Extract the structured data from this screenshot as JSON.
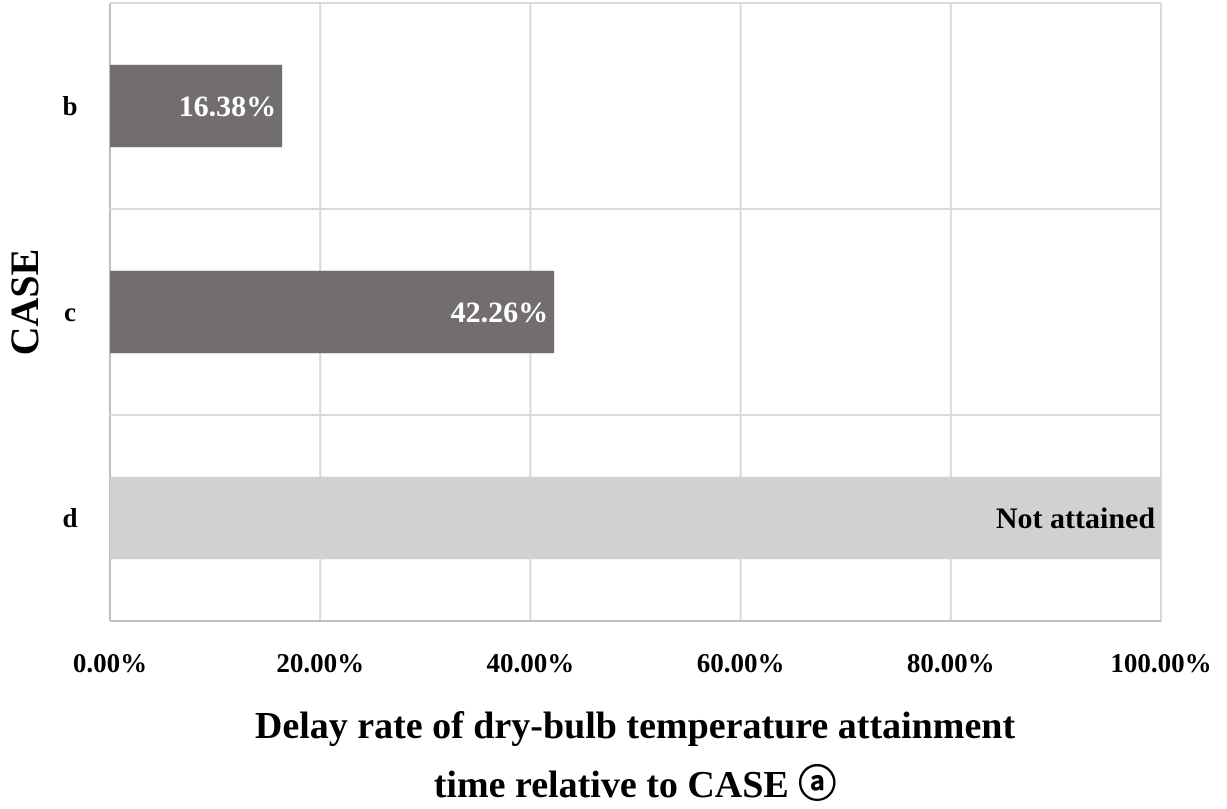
{
  "chart_data": {
    "type": "bar",
    "orientation": "horizontal",
    "categories": [
      "b",
      "c",
      "d"
    ],
    "values": [
      16.38,
      42.26,
      100
    ],
    "data_labels": [
      "16.38%",
      "42.26%",
      "Not attained"
    ],
    "xlim": [
      0,
      100
    ],
    "x_ticks": [
      "0.00%",
      "20.00%",
      "40.00%",
      "60.00%",
      "80.00%",
      "100.00%"
    ],
    "ylabel": "CASE",
    "xlabel_lines": [
      "Delay rate of dry-bulb temperature attainment",
      "time relative to CASE ⓐ"
    ],
    "grid": true,
    "legend": "none"
  },
  "colors": {
    "bar": "#736e6e",
    "bar_not_attained": "#d3d0d1",
    "label_on_dark": "#ffffff",
    "label_on_light": "#000000",
    "grid": "#d9d9d9",
    "axis": "#bfbfbf"
  }
}
